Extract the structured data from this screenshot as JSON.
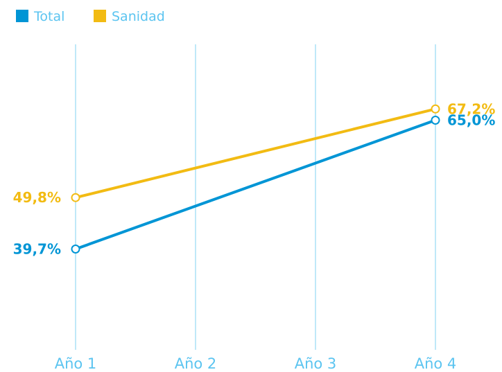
{
  "chart_data": {
    "type": "line",
    "categories": [
      "Año 1",
      "Año 2",
      "Año 3",
      "Año 4"
    ],
    "series": [
      {
        "name": "Total",
        "color": "#0095d5",
        "values": [
          39.7,
          null,
          null,
          65.0
        ],
        "labels": [
          "39,7%",
          null,
          null,
          "65,0%"
        ]
      },
      {
        "name": "Sanidad",
        "color": "#f2bb13",
        "values": [
          49.8,
          null,
          null,
          67.2
        ],
        "labels": [
          "49,8%",
          null,
          null,
          "67,2%"
        ]
      }
    ],
    "grid": true,
    "legend_position": "top-left"
  }
}
